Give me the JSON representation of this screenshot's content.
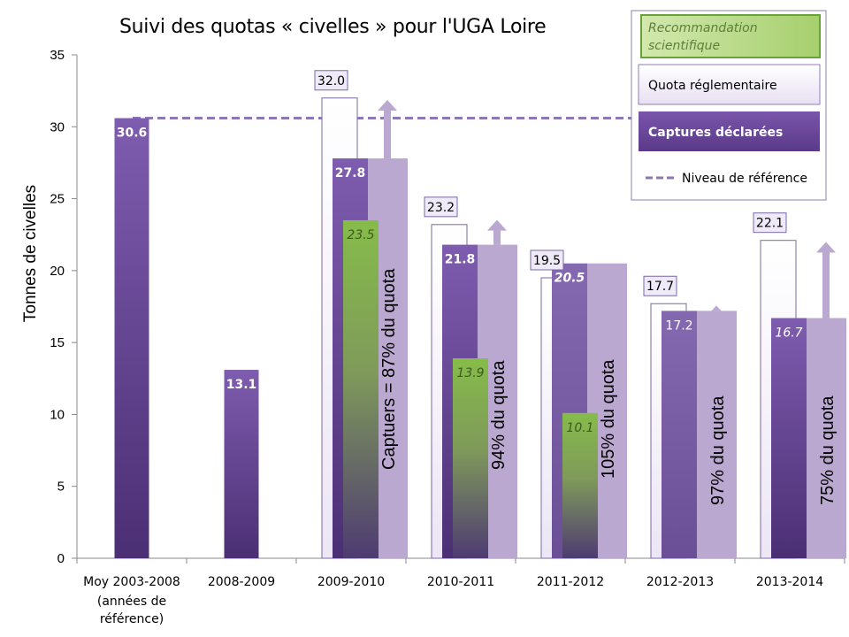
{
  "title": "Suivi des quotas « civelles » pour l'UGA Loire",
  "colors": {
    "capture_top": "#7d5bab",
    "capture_bottom": "#4a2f72",
    "quota_fill": "#f1ecf8",
    "quota_stroke": "#7a68a4",
    "quota_overlay": "#bba8d0",
    "reco_top": "#8bbd4e",
    "reco_bottom": "#5a4a7a",
    "reference_line": "#8c78b4"
  },
  "chart_data": {
    "type": "bar",
    "title": "Suivi des quotas « civelles » pour l'UGA Loire",
    "ylabel": "Tonnes de civelles",
    "ylim": [
      0,
      35
    ],
    "yticks": [
      "0",
      "5",
      "10",
      "15",
      "20",
      "25",
      "30",
      "35"
    ],
    "categories": [
      {
        "label": "Moy 2003-2008",
        "sub": [
          "(années de",
          "référence)"
        ]
      },
      {
        "label": "2008-2009",
        "sub": []
      },
      {
        "label": "2009-2010",
        "sub": []
      },
      {
        "label": "2010-2011",
        "sub": []
      },
      {
        "label": "2011-2012",
        "sub": []
      },
      {
        "label": "2012-2013",
        "sub": []
      },
      {
        "label": "2013-2014",
        "sub": []
      }
    ],
    "reference_level": 30.6,
    "series": [
      {
        "name": "Quota réglementaire",
        "values": [
          null,
          null,
          32.0,
          23.2,
          19.5,
          17.7,
          22.1
        ],
        "labels": [
          "",
          "",
          "32.0",
          "23.2",
          "19.5",
          "17.7",
          "22.1"
        ]
      },
      {
        "name": "Captures déclarées",
        "values": [
          30.6,
          13.1,
          27.8,
          21.8,
          20.5,
          17.2,
          16.7
        ],
        "labels": [
          "30.6",
          "13.1",
          "27.8",
          "21.8",
          "20.5",
          "17.2",
          "16.7"
        ]
      },
      {
        "name": "Recommandation scientifique",
        "values": [
          null,
          null,
          23.5,
          13.9,
          10.1,
          null,
          null
        ],
        "labels": [
          "",
          "",
          "23.5",
          "13.9",
          "10.1",
          "",
          ""
        ]
      }
    ],
    "annotations": [
      "",
      "",
      "Captuers  = 87% du quota",
      "94% du quota",
      "105% du quota",
      "97% du quota",
      "75% du quota"
    ],
    "legend": {
      "placement": "top-right",
      "recommandation": "Recommandation scientifique",
      "quota": "Quota réglementaire",
      "captures": "Captures déclarées",
      "reference": "Niveau de référence"
    }
  }
}
